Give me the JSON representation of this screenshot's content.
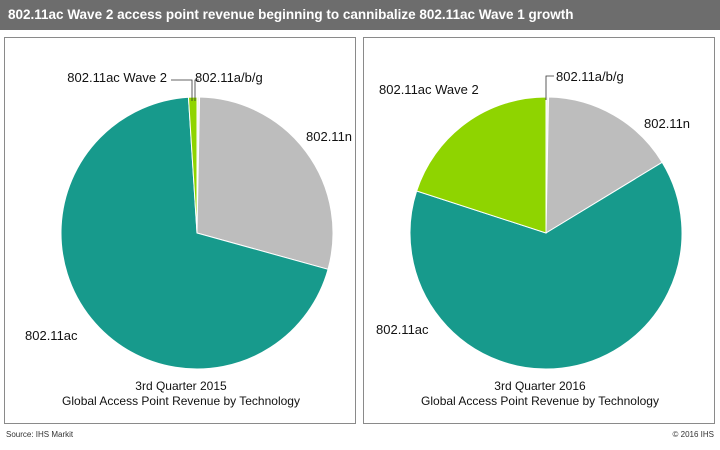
{
  "title": "802.11ac Wave 2 access point revenue beginning to cannibalize 802.11ac Wave 1 growth",
  "footer": {
    "source": "Source: IHS Markit",
    "copyright": "© 2016 IHS"
  },
  "colors": {
    "802.11a/b/g": "#f2f2f2",
    "802.11n": "#bdbdbd",
    "802.11ac": "#179a8c",
    "802.11ac Wave 2": "#8fd400"
  },
  "chart_data": [
    {
      "type": "pie",
      "caption_line1": "3rd Quarter 2015",
      "caption_line2": "Global Access Point Revenue by Technology",
      "slices": [
        {
          "label": "802.11a/b/g",
          "value": 0.3
        },
        {
          "label": "802.11n",
          "value": 29
        },
        {
          "label": "802.11ac",
          "value": 69.7
        },
        {
          "label": "802.11ac Wave 2",
          "value": 1
        }
      ]
    },
    {
      "type": "pie",
      "caption_line1": "3rd Quarter 2016",
      "caption_line2": "Global Access Point Revenue by Technology",
      "slices": [
        {
          "label": "802.11a/b/g",
          "value": 0.3
        },
        {
          "label": "802.11n",
          "value": 16
        },
        {
          "label": "802.11ac",
          "value": 63.7
        },
        {
          "label": "802.11ac Wave 2",
          "value": 20
        }
      ]
    }
  ]
}
